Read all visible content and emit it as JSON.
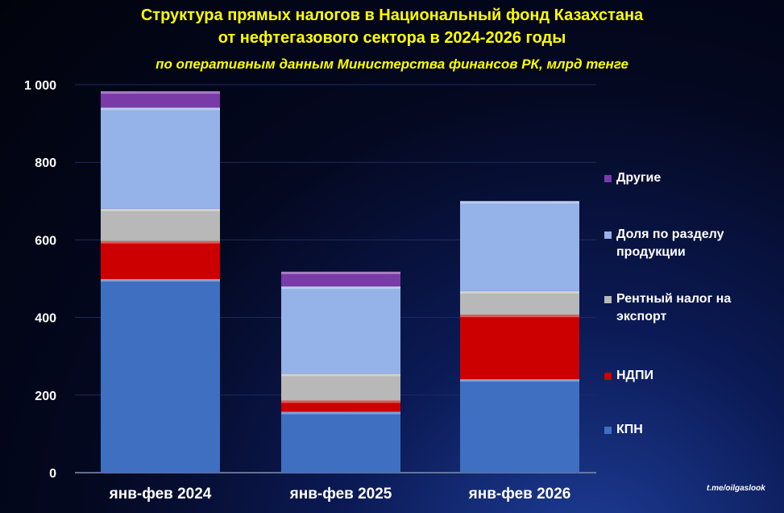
{
  "chart_data": {
    "type": "bar",
    "stacked": true,
    "title": "Структура прямых налогов в Национальный фонд Казахстана",
    "title_line2": "от нефтегазового сектора в 2024-2026 годы",
    "subtitle": "по оперативным данным Министерства финансов РК, млрд тенге",
    "categories": [
      "янв-фев 2024",
      "янв-фев 2025",
      "янв-фев 2026"
    ],
    "series": [
      {
        "name": "КПН",
        "values": [
          499,
          157,
          241
        ],
        "color": "#3f6fc0"
      },
      {
        "name": "НДПИ",
        "values": [
          98,
          29,
          166
        ],
        "color": "#cc0000"
      },
      {
        "name": "Рентный налог на экспорт",
        "values": [
          83,
          69,
          61
        ],
        "color": "#b8b8b8"
      },
      {
        "name": "Доля по разделу продукции",
        "values": [
          261,
          225,
          232
        ],
        "color": "#95b3e8"
      },
      {
        "name": "Другие",
        "values": [
          42,
          38,
          0
        ],
        "color": "#7a3aa8"
      }
    ],
    "ylim": [
      0,
      1000
    ],
    "yticks": [
      "0",
      "200",
      "400",
      "600",
      "800",
      "1 000"
    ],
    "grid": true,
    "legend": "right"
  },
  "source": "t.me/oilgaslook"
}
